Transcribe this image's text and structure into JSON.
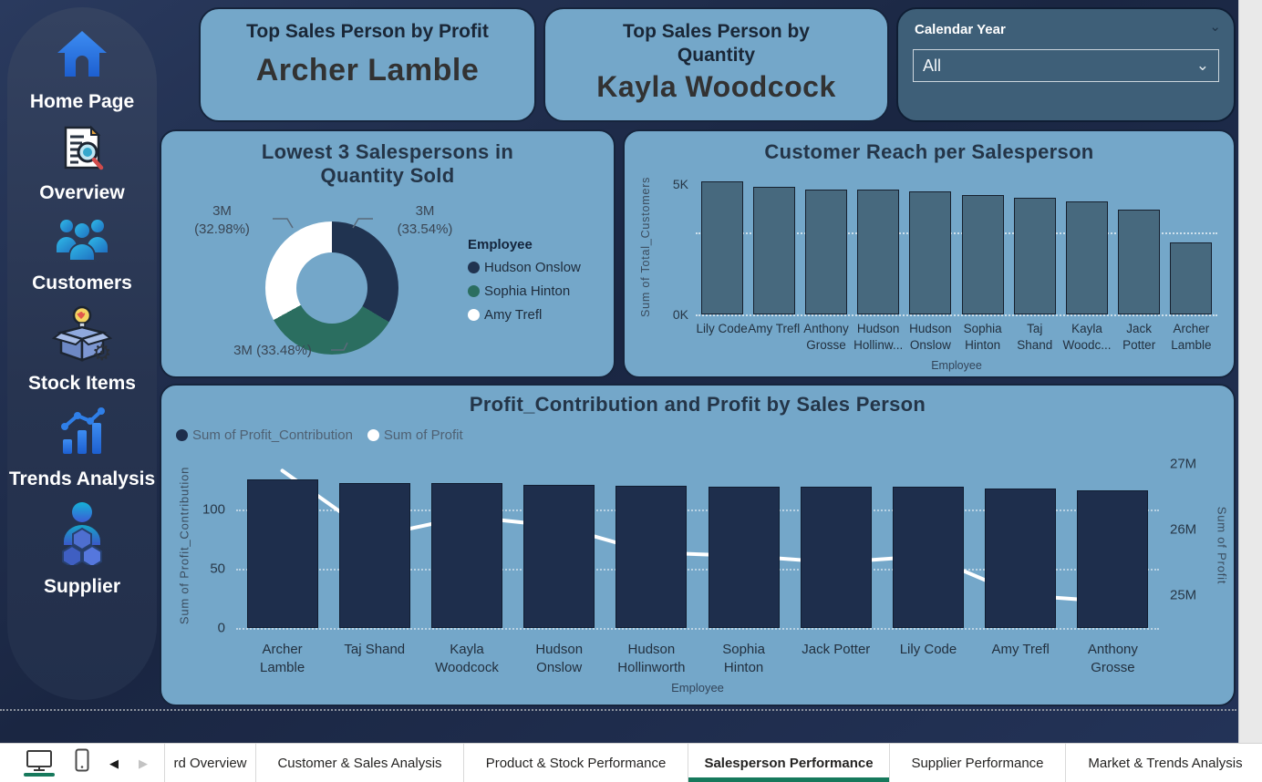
{
  "sidebar": {
    "items": [
      {
        "label": "Home Page",
        "icon": "home-icon"
      },
      {
        "label": "Overview",
        "icon": "overview-icon"
      },
      {
        "label": "Customers",
        "icon": "customers-icon"
      },
      {
        "label": "Stock Items",
        "icon": "stock-items-icon"
      },
      {
        "label": "Trends Analysis",
        "icon": "trends-icon"
      },
      {
        "label": "Supplier",
        "icon": "supplier-icon"
      }
    ]
  },
  "kpi_cards": {
    "profit": {
      "title": "Top Sales Person by Profit",
      "value": "Archer Lamble"
    },
    "quantity": {
      "title": "Top Sales Person by Quantity",
      "value": "Kayla Woodcock"
    }
  },
  "slicer": {
    "label": "Calendar Year",
    "value": "All"
  },
  "chart_data": [
    {
      "type": "pie",
      "title": "Lowest 3 Salespersons in Quantity Sold",
      "legend_title": "Employee",
      "legend_position": "right",
      "slices": [
        {
          "label": "Hudson Onslow",
          "value_label": "3M",
          "pct": 33.54,
          "color": "#203350"
        },
        {
          "label": "Sophia Hinton",
          "value_label": "3M",
          "pct": 33.48,
          "color": "#2b6e60"
        },
        {
          "label": "Amy Trefl",
          "value_label": "3M",
          "pct": 32.98,
          "color": "#ffffff"
        }
      ],
      "data_labels": [
        "3M (33.54%)",
        "3M (33.48%)",
        "3M (32.98%)"
      ]
    },
    {
      "type": "bar",
      "title": "Customer Reach per Salesperson",
      "categories": [
        "Lily Code",
        "Amy Trefl",
        "Anthony Grosse",
        "Hudson Hollinw...",
        "Hudson Onslow",
        "Sophia Hinton",
        "Taj Shand",
        "Kayla Woodc...",
        "Jack Potter",
        "Archer Lamble"
      ],
      "values": [
        8.1,
        7.8,
        7.6,
        7.6,
        7.5,
        7.3,
        7.1,
        6.9,
        6.4,
        4.4
      ],
      "value_unit": "K",
      "xlabel": "Employee",
      "ylabel": "Sum of Total_Customers",
      "yticks": [
        "0K",
        "5K"
      ],
      "ylim": [
        0,
        8.11
      ],
      "bar_color": "#47697e",
      "grid": true
    },
    {
      "type": "bar+line",
      "title": "Profit_Contribution and Profit by Sales Person",
      "categories": [
        "Archer Lamble",
        "Taj Shand",
        "Kayla Woodcock",
        "Hudson Onslow",
        "Hudson Hollinworth",
        "Sophia Hinton",
        "Jack Potter",
        "Lily Code",
        "Amy Trefl",
        "Anthony Grosse"
      ],
      "series": [
        {
          "name": "Sum of Profit_Contribution",
          "type": "bar",
          "axis": "left",
          "color": "#1e2e4c",
          "values": [
            125,
            122,
            122,
            121,
            120,
            119,
            119,
            119,
            118,
            116
          ]
        },
        {
          "name": "Sum of Profit",
          "type": "line",
          "axis": "right",
          "color": "#ffffff",
          "value_unit": "M",
          "values": [
            26.9,
            25.9,
            26.2,
            26.05,
            25.65,
            25.6,
            25.5,
            25.6,
            25.0,
            24.9
          ]
        }
      ],
      "xlabel": "Employee",
      "left_axis": {
        "label": "Sum of Profit_Contribution",
        "ticks": [
          0,
          50,
          100
        ],
        "lim": [
          0,
          140
        ]
      },
      "right_axis": {
        "label": "Sum of Profit",
        "ticks": [
          "25M",
          "26M",
          "27M"
        ],
        "lim": [
          24.5,
          27.03
        ]
      },
      "grid": true
    }
  ],
  "tab_bar": {
    "tabs": [
      {
        "label": "rd Overview",
        "active": false
      },
      {
        "label": "Customer & Sales Analysis",
        "active": false
      },
      {
        "label": "Product & Stock Performance",
        "active": false
      },
      {
        "label": "Salesperson Performance",
        "active": true
      },
      {
        "label": "Supplier Performance",
        "active": false
      },
      {
        "label": "Market & Trends Analysis",
        "active": false
      }
    ]
  },
  "colors": {
    "accent_green": "#17795c",
    "card_blue": "#74a7c9",
    "navy": "#1e2e4c",
    "teal": "#2b6e60",
    "bar_slate": "#47697e",
    "slicer_bg": "#3e5f78"
  }
}
